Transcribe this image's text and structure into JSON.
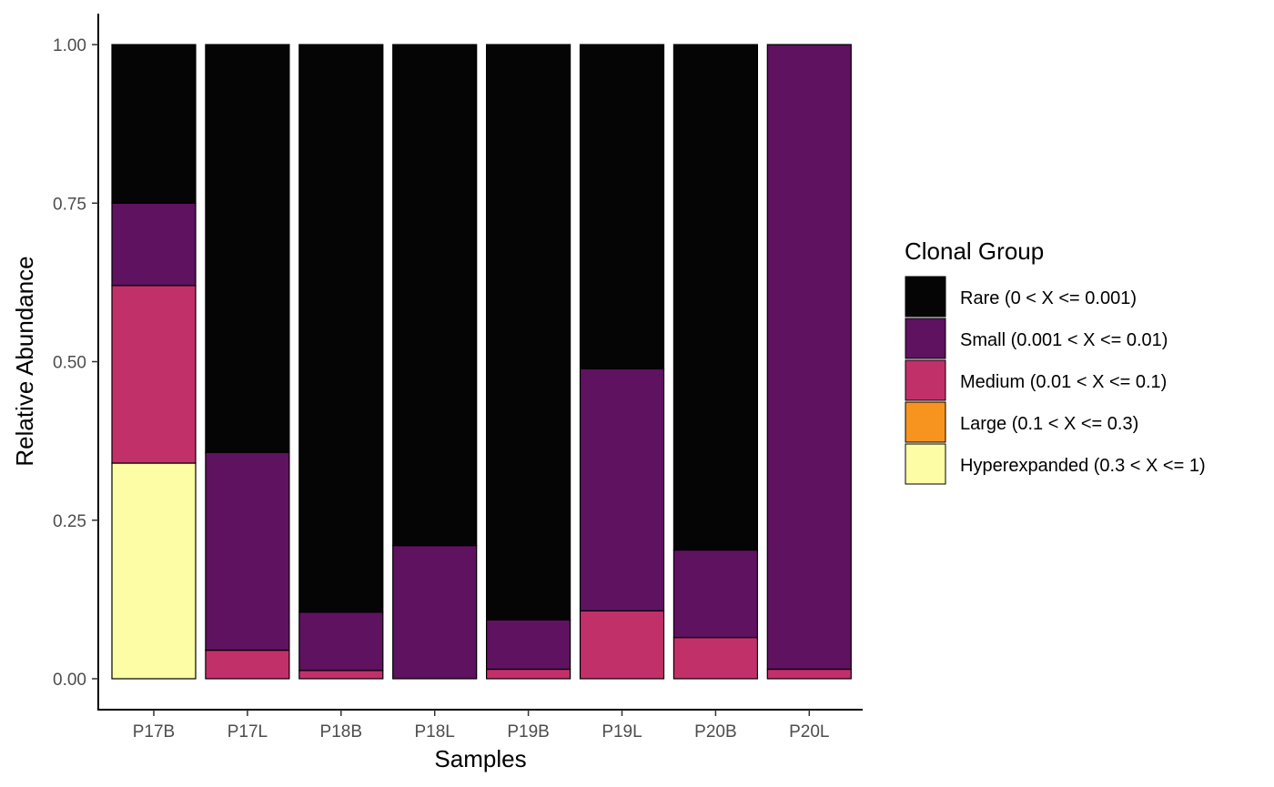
{
  "chart_data": {
    "type": "bar",
    "stacked": true,
    "categories": [
      "P17B",
      "P17L",
      "P18B",
      "P18L",
      "P19B",
      "P19L",
      "P20B",
      "P20L"
    ],
    "series": [
      {
        "name": "Hyperexpanded (0.3 < X <= 1)",
        "color": "#FCFDA4",
        "values": [
          0.34,
          0,
          0,
          0,
          0,
          0,
          0,
          0
        ]
      },
      {
        "name": "Large (0.1 < X <= 0.3)",
        "color": "#F7941F",
        "values": [
          0,
          0,
          0,
          0,
          0,
          0,
          0,
          0
        ]
      },
      {
        "name": "Medium (0.01 < X <= 0.1)",
        "color": "#C2306A",
        "values": [
          0.28,
          0.045,
          0.013,
          0,
          0.015,
          0.107,
          0.065,
          0.015
        ]
      },
      {
        "name": "Small (0.001 < X <= 0.01)",
        "color": "#5E125F",
        "values": [
          0.13,
          0.312,
          0.092,
          0.21,
          0.078,
          0.382,
          0.138,
          0.985
        ]
      },
      {
        "name": "Rare (0 < X <= 0.001)",
        "color": "#050505",
        "values": [
          0.25,
          0.643,
          0.895,
          0.79,
          0.907,
          0.511,
          0.797,
          0
        ]
      }
    ],
    "yticks": [
      "0.00",
      "0.25",
      "0.50",
      "0.75",
      "1.00"
    ],
    "ylim": [
      0,
      1
    ],
    "xlabel": "Samples",
    "ylabel": "Relative Abundance",
    "legend": {
      "title": "Clonal Group",
      "position": "right",
      "order": [
        "Rare (0 < X <= 0.001)",
        "Small (0.001 < X <= 0.01)",
        "Medium (0.01 < X <= 0.1)",
        "Large (0.1 < X <= 0.3)",
        "Hyperexpanded (0.3 < X <= 1)"
      ]
    },
    "grid": false
  }
}
